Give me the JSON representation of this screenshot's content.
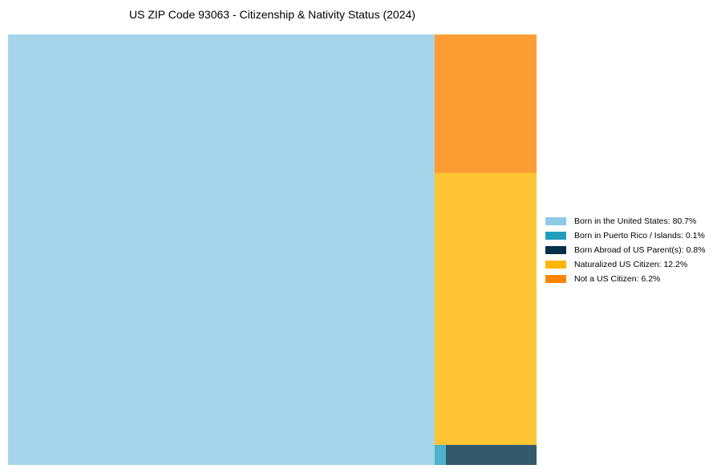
{
  "chart_data": {
    "type": "treemap",
    "title": "US ZIP Code 93063 - Citizenship & Nativity Status (2024)",
    "items": [
      {
        "label": "Born in the United States",
        "value": 80.7,
        "color": "#8ecae6",
        "legend": "Born in the United States: 80.7%"
      },
      {
        "label": "Born in Puerto Rico / Islands",
        "value": 0.1,
        "color": "#219ebc",
        "legend": "Born in Puerto Rico / Islands: 0.1%"
      },
      {
        "label": "Born Abroad of US Parent(s)",
        "value": 0.8,
        "color": "#023047",
        "legend": "Born Abroad of US Parent(s): 0.8%"
      },
      {
        "label": "Naturalized US Citizen",
        "value": 12.2,
        "color": "#ffb703",
        "legend": "Naturalized US Citizen: 12.2%"
      },
      {
        "label": "Not a US Citizen",
        "value": 6.2,
        "color": "#fb8500",
        "legend": "Not a US Citizen: 6.2%"
      }
    ],
    "legend_position": "right"
  }
}
